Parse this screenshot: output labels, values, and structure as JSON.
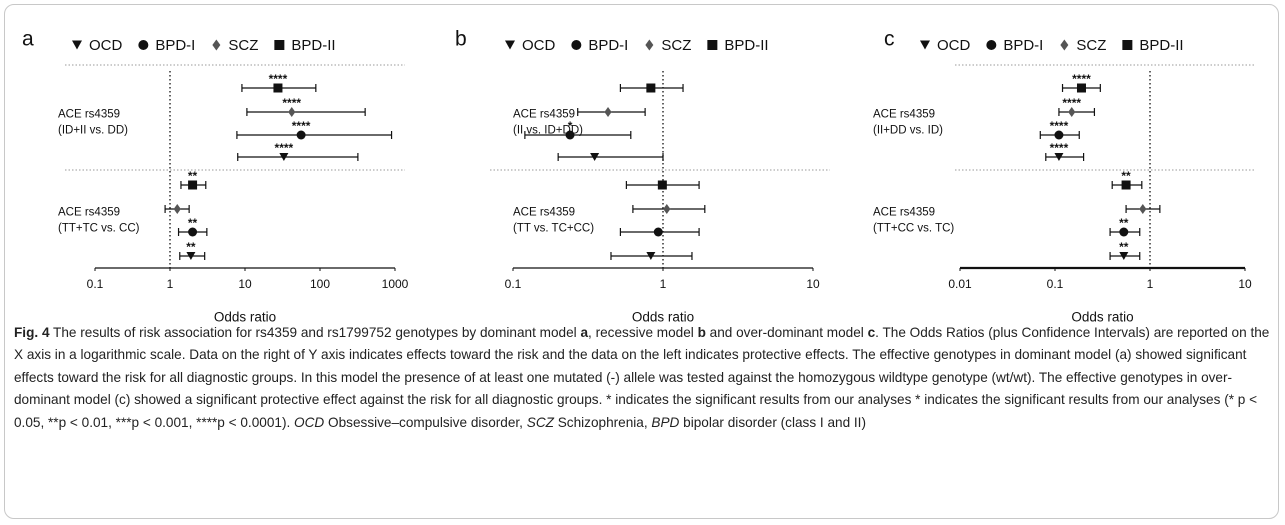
{
  "chart_data": [
    {
      "type": "forest",
      "panel": "a",
      "xlabel": "Odds ratio",
      "log_x": true,
      "xlim": [
        0.1,
        1000
      ],
      "xticks": [
        0.1,
        1,
        10,
        100,
        1000
      ],
      "groups": [
        [
          "ACE rs4359",
          "(ID+II vs. DD)"
        ],
        [
          "ACE rs4359",
          "(TT+TC vs. CC)"
        ]
      ],
      "series": [
        {
          "name": "OCD",
          "marker": "triangle-down",
          "color": "#111",
          "values": [
            33,
            1.9
          ],
          "ci_low": [
            8,
            1.35
          ],
          "ci_high": [
            320,
            2.9
          ],
          "annotations": [
            "****",
            "**"
          ]
        },
        {
          "name": "BPD-I",
          "marker": "circle",
          "color": "#111",
          "values": [
            56,
            2.0
          ],
          "ci_low": [
            7.8,
            1.3
          ],
          "ci_high": [
            900,
            3.1
          ],
          "annotations": [
            "****",
            "**"
          ]
        },
        {
          "name": "SCZ",
          "marker": "diamond",
          "color": "#555",
          "values": [
            42,
            1.25
          ],
          "ci_low": [
            10.6,
            0.86
          ],
          "ci_high": [
            400,
            1.8
          ],
          "annotations": [
            "****",
            null
          ]
        },
        {
          "name": "BPD-II",
          "marker": "square",
          "color": "#111",
          "values": [
            27.5,
            2.0
          ],
          "ci_low": [
            9.1,
            1.4
          ],
          "ci_high": [
            88,
            3.0
          ],
          "annotations": [
            "****",
            "**"
          ]
        }
      ]
    },
    {
      "type": "forest",
      "panel": "b",
      "xlabel": "Odds ratio",
      "log_x": true,
      "xlim": [
        0.1,
        10
      ],
      "xticks": [
        0.1,
        1,
        10
      ],
      "groups": [
        [
          "ACE rs4359",
          "(II vs. ID+DD)"
        ],
        [
          "ACE rs4359",
          "(TT vs. TC+CC)"
        ]
      ],
      "series": [
        {
          "name": "OCD",
          "marker": "triangle-down",
          "color": "#111",
          "values": [
            0.35,
            0.83
          ],
          "ci_low": [
            0.2,
            0.45
          ],
          "ci_high": [
            1.0,
            1.56
          ],
          "annotations": [
            null,
            null
          ]
        },
        {
          "name": "BPD-I",
          "marker": "circle",
          "color": "#111",
          "values": [
            0.24,
            0.93
          ],
          "ci_low": [
            0.12,
            0.52
          ],
          "ci_high": [
            0.61,
            1.74
          ],
          "annotations": [
            "*",
            null
          ]
        },
        {
          "name": "SCZ",
          "marker": "diamond",
          "color": "#555",
          "values": [
            0.43,
            1.06
          ],
          "ci_low": [
            0.27,
            0.63
          ],
          "ci_high": [
            0.76,
            1.9
          ],
          "annotations": [
            null,
            null
          ]
        },
        {
          "name": "BPD-II",
          "marker": "square",
          "color": "#111",
          "values": [
            0.83,
            0.99
          ],
          "ci_low": [
            0.52,
            0.57
          ],
          "ci_high": [
            1.36,
            1.74
          ],
          "annotations": [
            null,
            null
          ]
        }
      ]
    },
    {
      "type": "forest",
      "panel": "c",
      "xlabel": "Odds ratio",
      "log_x": true,
      "xlim": [
        0.01,
        10
      ],
      "xticks": [
        0.01,
        0.1,
        1,
        10
      ],
      "groups": [
        [
          "ACE rs4359",
          "(II+DD vs. ID)"
        ],
        [
          "ACE rs4359",
          "(TT+CC vs. TC)"
        ]
      ],
      "series": [
        {
          "name": "OCD",
          "marker": "triangle-down",
          "color": "#111",
          "values": [
            0.11,
            0.53
          ],
          "ci_low": [
            0.08,
            0.38
          ],
          "ci_high": [
            0.2,
            0.78
          ],
          "annotations": [
            "****",
            "**"
          ]
        },
        {
          "name": "BPD-I",
          "marker": "circle",
          "color": "#111",
          "values": [
            0.11,
            0.53
          ],
          "ci_low": [
            0.07,
            0.38
          ],
          "ci_high": [
            0.18,
            0.78
          ],
          "annotations": [
            "****",
            "**"
          ]
        },
        {
          "name": "SCZ",
          "marker": "diamond",
          "color": "#555",
          "values": [
            0.15,
            0.84
          ],
          "ci_low": [
            0.11,
            0.56
          ],
          "ci_high": [
            0.26,
            1.27
          ],
          "annotations": [
            "****",
            null
          ]
        },
        {
          "name": "BPD-II",
          "marker": "square",
          "color": "#111",
          "values": [
            0.19,
            0.56
          ],
          "ci_low": [
            0.12,
            0.4
          ],
          "ci_high": [
            0.3,
            0.82
          ],
          "annotations": [
            "****",
            "**"
          ]
        }
      ]
    }
  ],
  "caption": [
    {
      "text": "Fig. 4",
      "style": "bold"
    },
    {
      "text": "  The results of risk association for rs4359 and rs1799752 genotypes by dominant model "
    },
    {
      "text": "a",
      "style": "bold"
    },
    {
      "text": ", recessive model "
    },
    {
      "text": "b",
      "style": "bold"
    },
    {
      "text": " and over-dominant model "
    },
    {
      "text": "c",
      "style": "bold"
    },
    {
      "text": ". The Odds Ratios (plus Confidence Intervals) are reported on the X axis in a logarithmic scale. Data on the right of Y axis indicates effects toward the risk and the data on the left indicates protective effects. The effective genotypes in dominant model (a) showed significant effects toward the risk for all diagnostic groups. In this model the presence of at least one mutated (-) allele was tested against the homozygous wildtype genotype (wt/wt). The effective genotypes in over-dominant model (c) showed a significant protective effect against the risk for all diagnostic groups. * indicates the significant results from our analyses * indicates the significant results from our analyses (* p < 0.05, **p < 0.01, ***p < 0.001, ****p < 0.0001). "
    },
    {
      "text": "OCD",
      "style": "italic"
    },
    {
      "text": " Obsessive–compulsive disorder, "
    },
    {
      "text": "SCZ",
      "style": "italic"
    },
    {
      "text": " Schizophrenia, "
    },
    {
      "text": "BPD",
      "style": "italic"
    },
    {
      "text": " bipolar disorder (class I and II)"
    }
  ]
}
